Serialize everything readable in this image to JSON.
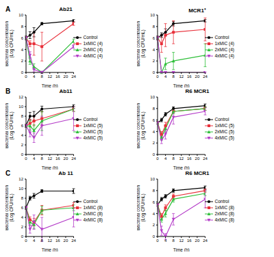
{
  "chart_data": [
    {
      "type": "line",
      "panel_label": "A",
      "title": "Ab21",
      "x_label": "Time (h)",
      "y_label": [
        "Bacterial concentration",
        "(Log CFU/mL)"
      ],
      "x": [
        0,
        2,
        4,
        8,
        24
      ],
      "xlim": [
        0,
        24
      ],
      "xticks": [
        0,
        4,
        8,
        12,
        16,
        20,
        24
      ],
      "ylim": [
        0,
        10
      ],
      "yticks": [
        0,
        2,
        4,
        6,
        8,
        10
      ],
      "grid": false,
      "legend": "right",
      "series": [
        {
          "name": "Control",
          "color": "#000000",
          "marker": "circle",
          "values": [
            6,
            6.5,
            7,
            8.5,
            9
          ],
          "errors": [
            0.3,
            0.6,
            0.8,
            0.2,
            0.2
          ]
        },
        {
          "name": "1xMIC (4)",
          "color": "#e8303a",
          "marker": "square",
          "values": [
            6,
            5,
            5,
            4.5,
            8.5
          ],
          "errors": [
            0.3,
            0.5,
            2,
            2.5,
            0.3
          ]
        },
        {
          "name": "2xMIC (4)",
          "color": "#2fbf3a",
          "marker": "triangle",
          "values": [
            6,
            2,
            1,
            0,
            5.5
          ],
          "errors": [
            0.3,
            0.6,
            0.5,
            0.2,
            0.3
          ]
        },
        {
          "name": "4xMIC (4)",
          "color": "#b43cc8",
          "marker": "triangle-down",
          "values": [
            6,
            3,
            0.5,
            0,
            4.5
          ],
          "errors": [
            0.3,
            0.6,
            0.4,
            0.2,
            0.3
          ]
        }
      ]
    },
    {
      "type": "line",
      "title": "MCR1⁺",
      "x_label": "Time (h)",
      "y_label": [
        "Bacterial concentration",
        "(Log CFU/mL)"
      ],
      "x": [
        0,
        2,
        4,
        8,
        24
      ],
      "xlim": [
        0,
        24
      ],
      "xticks": [
        0,
        4,
        8,
        12,
        16,
        20,
        24
      ],
      "ylim": [
        0,
        10
      ],
      "yticks": [
        0,
        2,
        4,
        6,
        8,
        10
      ],
      "grid": false,
      "legend": "right",
      "series": [
        {
          "name": "Control",
          "color": "#000000",
          "marker": "circle",
          "values": [
            6,
            6.5,
            7,
            8.5,
            9
          ],
          "errors": [
            0.3,
            0.4,
            0.6,
            0.4,
            0.2
          ]
        },
        {
          "name": "1xMIC (4)",
          "color": "#e8303a",
          "marker": "square",
          "values": [
            6,
            5,
            6.5,
            7,
            7.5
          ],
          "errors": [
            0.3,
            1.5,
            2,
            2,
            2
          ]
        },
        {
          "name": "2xMIC (4)",
          "color": "#2fbf3a",
          "marker": "triangle",
          "values": [
            6,
            0,
            1.5,
            2,
            3
          ],
          "errors": [
            0.3,
            0.2,
            1,
            1.5,
            2
          ]
        },
        {
          "name": "4xMIC (4)",
          "color": "#b43cc8",
          "marker": "triangle-down",
          "values": [
            6,
            0,
            0,
            0,
            0
          ],
          "errors": [
            0.3,
            0.1,
            0.1,
            0.1,
            0.1
          ]
        }
      ]
    },
    {
      "type": "line",
      "panel_label": "B",
      "title": "Ab11",
      "x_label": "Time (h)",
      "y_label": [
        "Bacterial concentration",
        "(Log CFU/mL)"
      ],
      "x": [
        0,
        2,
        4,
        8,
        24
      ],
      "xlim": [
        0,
        24
      ],
      "xticks": [
        0,
        4,
        8,
        12,
        16,
        20,
        24
      ],
      "ylim": [
        0,
        12
      ],
      "yticks": [
        0,
        2,
        4,
        6,
        8,
        10,
        12
      ],
      "grid": false,
      "legend": "right",
      "series": [
        {
          "name": "Control",
          "color": "#000000",
          "marker": "circle",
          "values": [
            6,
            8,
            8,
            9.5,
            10
          ],
          "errors": [
            0.3,
            0.8,
            1,
            0.6,
            0.4
          ]
        },
        {
          "name": "1xMIC (5)",
          "color": "#e8303a",
          "marker": "square",
          "values": [
            6,
            6.5,
            7,
            7.5,
            9.5
          ],
          "errors": [
            0.3,
            0.8,
            1,
            1.5,
            0.5
          ]
        },
        {
          "name": "2xMIC (5)",
          "color": "#2fbf3a",
          "marker": "triangle",
          "values": [
            6,
            6,
            5,
            7,
            9.5
          ],
          "errors": [
            0.3,
            1,
            1.2,
            2,
            0.5
          ]
        },
        {
          "name": "4xMIC (5)",
          "color": "#b43cc8",
          "marker": "triangle-down",
          "values": [
            6,
            4.5,
            3.5,
            6,
            7.5
          ],
          "errors": [
            0.3,
            0.8,
            1,
            2,
            2.5
          ]
        }
      ]
    },
    {
      "type": "line",
      "title": "R6 MCR1",
      "x_label": "Time (h)",
      "y_label": [
        "Bacterial concentration",
        "(Log CFU/mL)"
      ],
      "x": [
        0,
        2,
        4,
        8,
        24
      ],
      "xlim": [
        0,
        24
      ],
      "xticks": [
        0,
        4,
        8,
        12,
        16,
        20,
        24
      ],
      "ylim": [
        0,
        10
      ],
      "yticks": [
        0,
        2,
        4,
        6,
        8,
        10
      ],
      "grid": false,
      "legend": "right",
      "series": [
        {
          "name": "Control",
          "color": "#000000",
          "marker": "circle",
          "values": [
            5.5,
            6,
            7,
            8,
            8.5
          ],
          "errors": [
            0.2,
            0.3,
            0.3,
            0.3,
            0.3
          ]
        },
        {
          "name": "1xMIC (5)",
          "color": "#e8303a",
          "marker": "square",
          "values": [
            5.5,
            3.5,
            5,
            7.5,
            8
          ],
          "errors": [
            0.2,
            0.5,
            0.6,
            0.4,
            0.3
          ]
        },
        {
          "name": "2xMIC (5)",
          "color": "#2fbf3a",
          "marker": "triangle",
          "values": [
            5.5,
            3,
            4.5,
            7.5,
            8
          ],
          "errors": [
            0.2,
            0.5,
            0.6,
            0.4,
            0.3
          ]
        },
        {
          "name": "4xMIC (5)",
          "color": "#b43cc8",
          "marker": "triangle-down",
          "values": [
            5.5,
            2.5,
            3.5,
            6.5,
            7.5
          ],
          "errors": [
            0.2,
            0.6,
            0.8,
            1.2,
            0.6
          ]
        }
      ]
    },
    {
      "type": "line",
      "panel_label": "C",
      "title": "Ab 11",
      "x_label": "Time (h)",
      "y_label": [
        "Bacterial concentration",
        "(Log CFU/mL)"
      ],
      "x": [
        0,
        2,
        4,
        8,
        24
      ],
      "xlim": [
        0,
        24
      ],
      "xticks": [
        0,
        4,
        8,
        12,
        16,
        20,
        24
      ],
      "ylim": [
        0,
        12
      ],
      "yticks": [
        0,
        2,
        4,
        6,
        8,
        10,
        12
      ],
      "grid": false,
      "legend": "right",
      "series": [
        {
          "name": "Control",
          "color": "#000000",
          "marker": "circle",
          "values": [
            6,
            8,
            8.5,
            9.5,
            9.5
          ],
          "errors": [
            0.3,
            0.4,
            0.5,
            0.3,
            0.5
          ]
        },
        {
          "name": "1xMIC (8)",
          "color": "#e8303a",
          "marker": "square",
          "values": [
            6,
            3.5,
            3,
            5.5,
            6.5
          ],
          "errors": [
            0.3,
            0.6,
            0.8,
            1,
            0.6
          ]
        },
        {
          "name": "2xMIC (8)",
          "color": "#2fbf3a",
          "marker": "triangle",
          "values": [
            6,
            3,
            2.5,
            5.5,
            6
          ],
          "errors": [
            0.3,
            0.6,
            0.8,
            0.8,
            0.6
          ]
        },
        {
          "name": "4xMIC (8)",
          "color": "#b43cc8",
          "marker": "triangle-down",
          "values": [
            6,
            1.5,
            3,
            1.5,
            4
          ],
          "errors": [
            0.3,
            0.8,
            1.5,
            2.5,
            2
          ]
        }
      ]
    },
    {
      "type": "line",
      "title": "R6 MCR1",
      "x_label": "Time (h)",
      "y_label": [
        "Bacterial concentration",
        "(Log CFU/mL)"
      ],
      "x": [
        0,
        2,
        4,
        8,
        24
      ],
      "xlim": [
        0,
        24
      ],
      "xticks": [
        0,
        4,
        8,
        12,
        16,
        20,
        24
      ],
      "ylim": [
        0,
        10
      ],
      "yticks": [
        0,
        2,
        4,
        6,
        8,
        10
      ],
      "grid": false,
      "legend": "right",
      "series": [
        {
          "name": "Control",
          "color": "#000000",
          "marker": "circle",
          "values": [
            5.5,
            6.5,
            7,
            8,
            8.5
          ],
          "errors": [
            0.2,
            0.3,
            0.3,
            0.3,
            0.3
          ]
        },
        {
          "name": "1xMIC (8)",
          "color": "#e8303a",
          "marker": "square",
          "values": [
            5.5,
            3.5,
            5,
            7,
            8
          ],
          "errors": [
            0.2,
            0.5,
            0.5,
            0.4,
            0.3
          ]
        },
        {
          "name": "2xMIC (8)",
          "color": "#2fbf3a",
          "marker": "triangle",
          "values": [
            5.5,
            3,
            4,
            6.5,
            7.5
          ],
          "errors": [
            0.2,
            0.5,
            0.6,
            0.5,
            0.4
          ]
        },
        {
          "name": "4xMIC (8)",
          "color": "#b43cc8",
          "marker": "triangle-down",
          "values": [
            5.5,
            1,
            0,
            3,
            6.5
          ],
          "errors": [
            0.2,
            0.8,
            0.5,
            1,
            1.5
          ]
        }
      ]
    }
  ]
}
